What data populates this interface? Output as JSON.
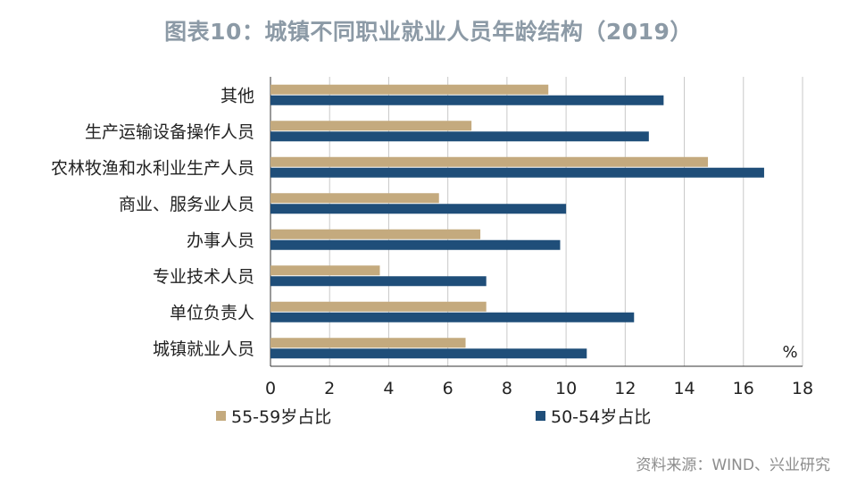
{
  "title": "图表10：城镇不同职业就业人员年龄结构（2019）",
  "source": "资料来源：WIND、兴业研究",
  "colors": {
    "series_55_59": "#c4aa7e",
    "series_50_54": "#1f4e79",
    "grid": "#c8c8c8",
    "axis": "#333333"
  },
  "chart_data": {
    "type": "bar",
    "orientation": "horizontal",
    "categories": [
      "其他",
      "生产运输设备操作人员",
      "农林牧渔和水利业生产人员",
      "商业、服务业人员",
      "办事人员",
      "专业技术人员",
      "单位负责人",
      "城镇就业人员"
    ],
    "series": [
      {
        "name": "55-59岁占比",
        "values": [
          9.4,
          6.8,
          14.8,
          5.7,
          7.1,
          3.7,
          7.3,
          6.6
        ]
      },
      {
        "name": "50-54岁占比",
        "values": [
          13.3,
          12.8,
          16.7,
          10.0,
          9.8,
          7.3,
          12.3,
          10.7
        ]
      }
    ],
    "xlim": [
      0,
      18
    ],
    "xticks": [
      "0",
      "2",
      "4",
      "6",
      "8",
      "10",
      "12",
      "14",
      "16",
      "18"
    ],
    "unit_label": "%",
    "grid": true,
    "legend_position": "bottom"
  }
}
